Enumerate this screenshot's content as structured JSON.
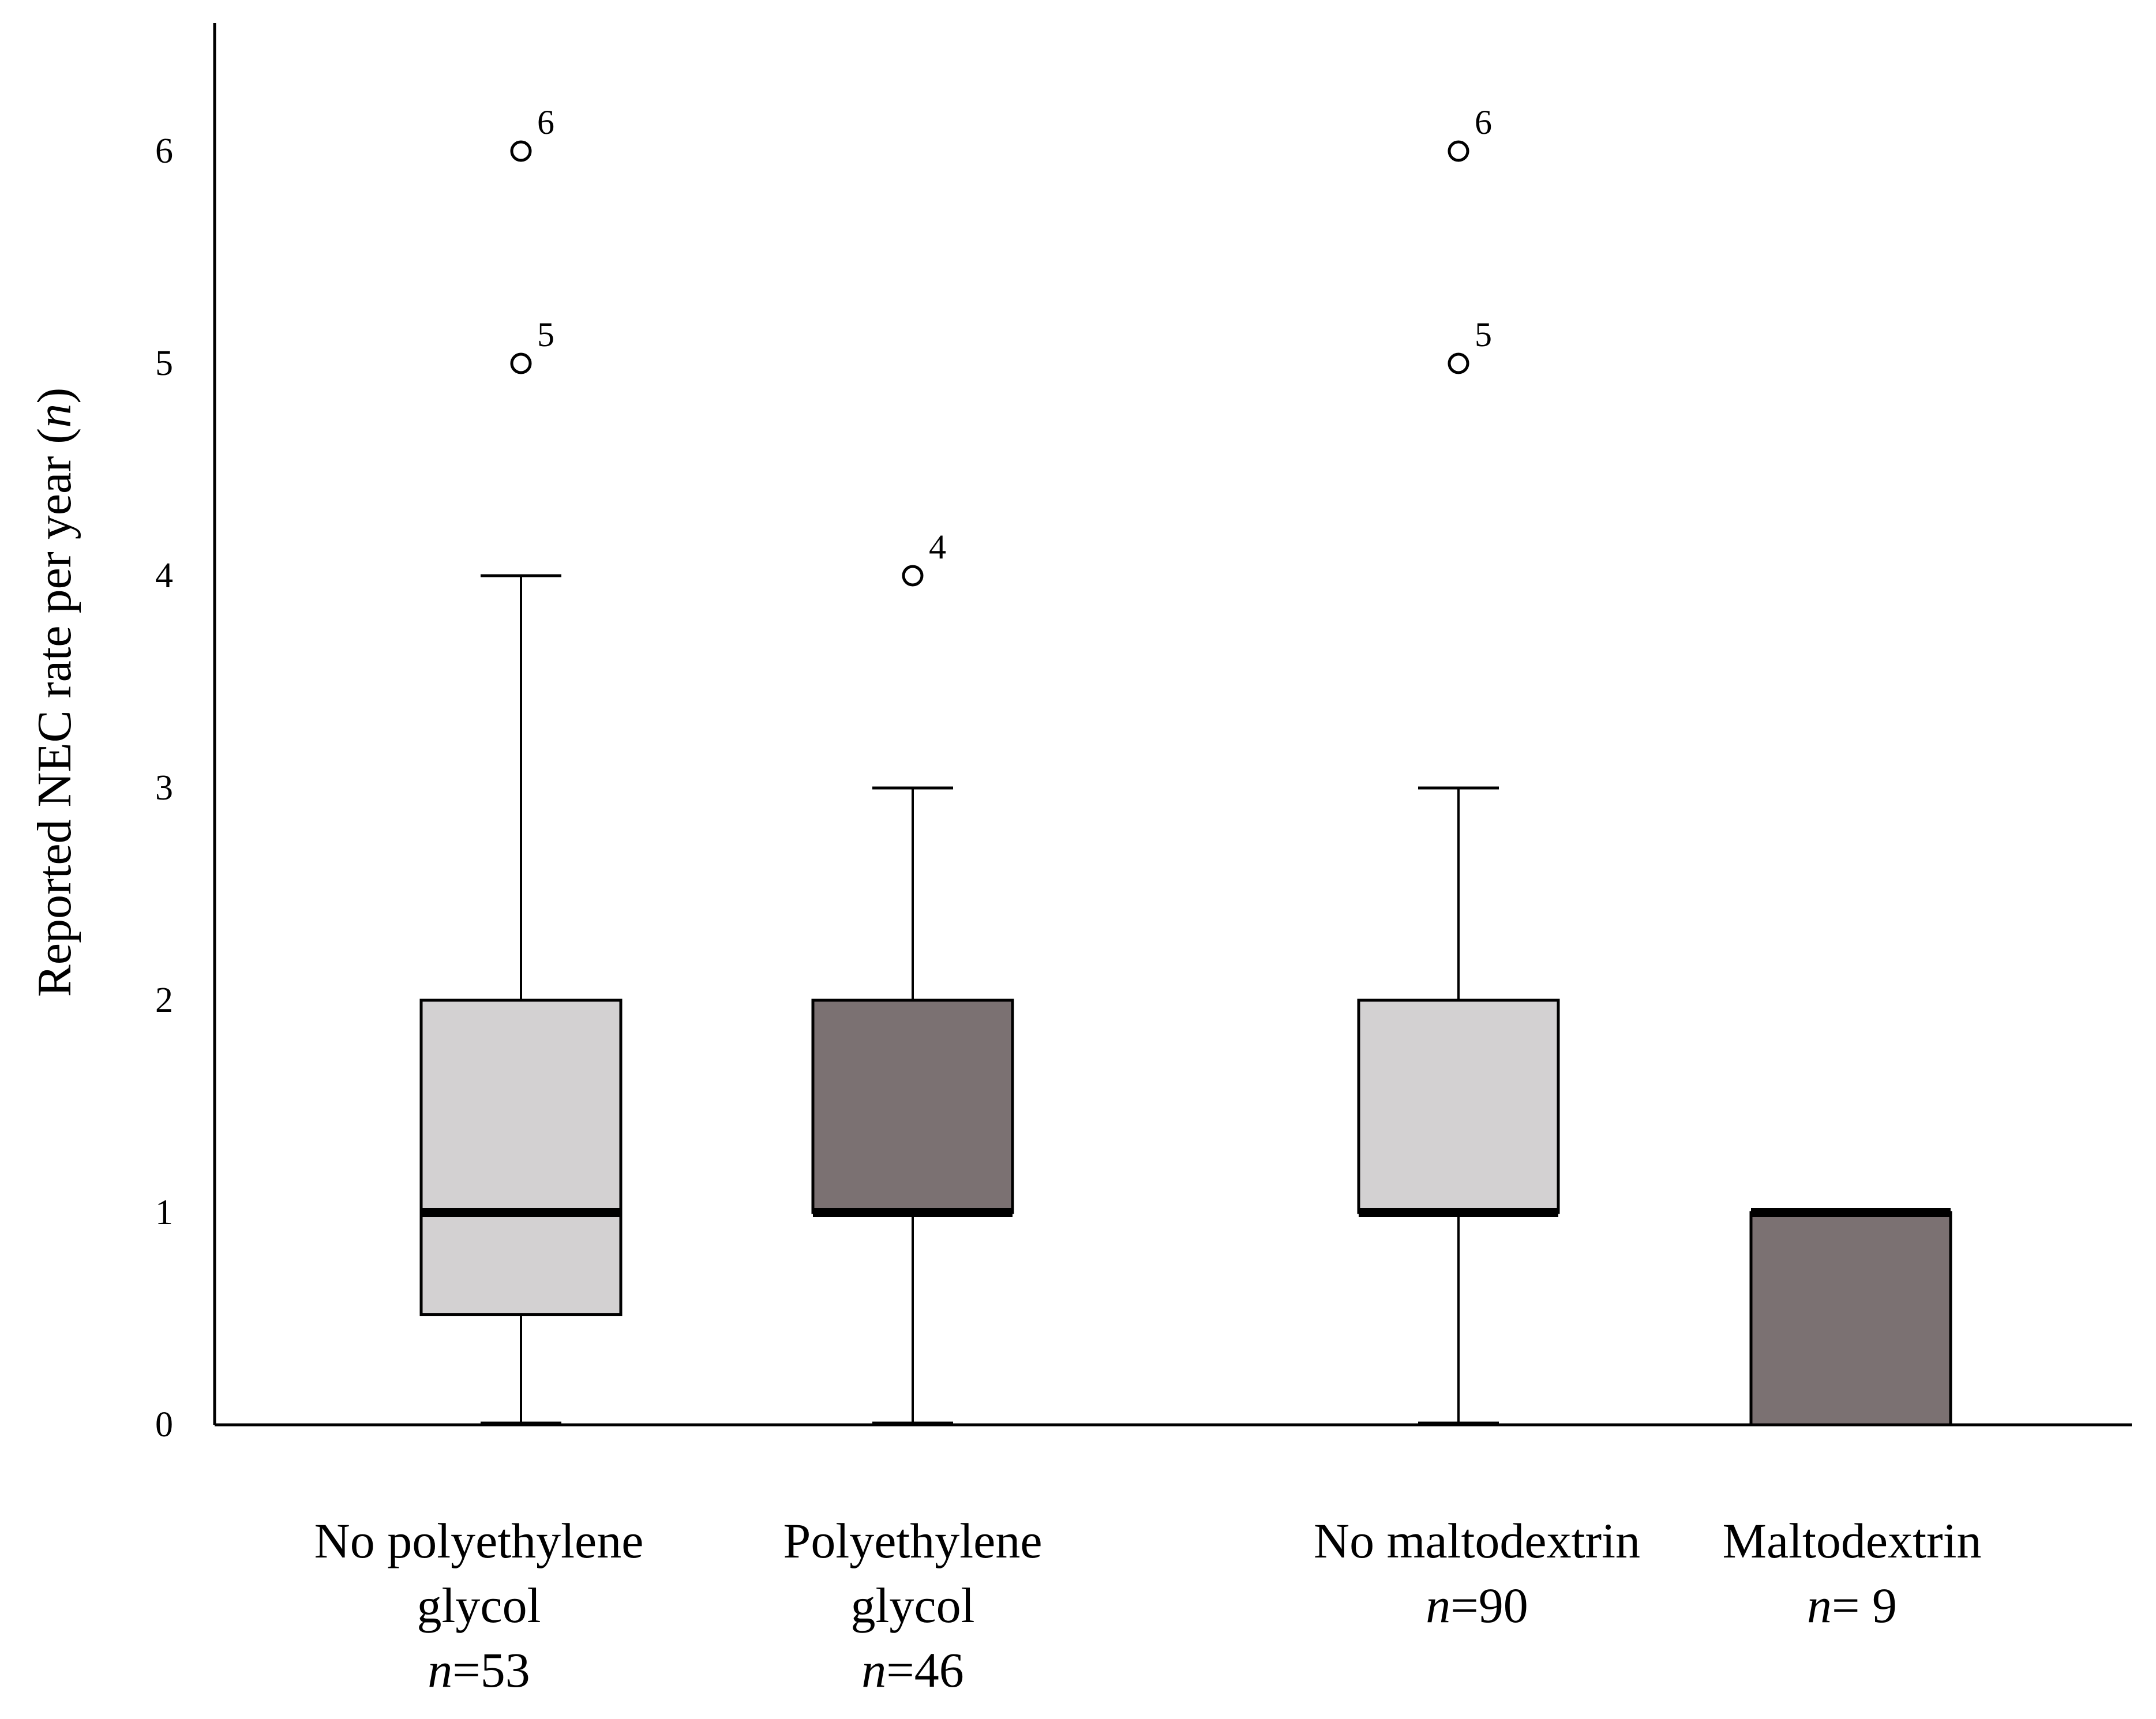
{
  "chart_data": {
    "type": "boxplot",
    "title": "",
    "xlabel": "",
    "ylabel": "Reported NEC rate per year (",
    "ylabel_var": "n",
    "ylabel_close": ")",
    "ylim": [
      0,
      6.5
    ],
    "yticks": [
      {
        "value": 0,
        "label": "0"
      },
      {
        "value": 1,
        "label": "1"
      },
      {
        "value": 2,
        "label": "2"
      },
      {
        "value": 3,
        "label": "3"
      },
      {
        "value": 4,
        "label": "4"
      },
      {
        "value": 5,
        "label": "5"
      },
      {
        "value": 6,
        "label": "6"
      }
    ],
    "groups": [
      {
        "name_lines": [
          "No polyethylene",
          "glycol"
        ],
        "n_var": "n",
        "n_text": "=53",
        "fill": "#d3d1d2",
        "min": 0,
        "q1": 0.52,
        "median": 1,
        "q3": 2,
        "max": 4,
        "outliers": [
          {
            "value": 5,
            "label": "5"
          },
          {
            "value": 6,
            "label": "6"
          }
        ]
      },
      {
        "name_lines": [
          "Polyethylene",
          "glycol"
        ],
        "n_var": "n",
        "n_text": "=46",
        "fill": "#7b7172",
        "min": 0,
        "q1": 1,
        "median": 1,
        "q3": 2,
        "max": 3,
        "outliers": [
          {
            "value": 4,
            "label": "4"
          }
        ]
      },
      {
        "name_lines": [
          "No maltodextrin"
        ],
        "n_var": "n",
        "n_text": "=90",
        "fill": "#d3d1d2",
        "min": 0,
        "q1": 1,
        "median": 1,
        "q3": 2,
        "max": 3,
        "outliers": [
          {
            "value": 5,
            "label": "5"
          },
          {
            "value": 6,
            "label": "6"
          }
        ]
      },
      {
        "name_lines": [
          "Maltodextrin"
        ],
        "n_var": "n",
        "n_text": "= 9",
        "fill": "#7b7172",
        "min": 0,
        "q1": 0,
        "median": 1,
        "q3": 1,
        "max": 1,
        "outliers": []
      }
    ]
  }
}
